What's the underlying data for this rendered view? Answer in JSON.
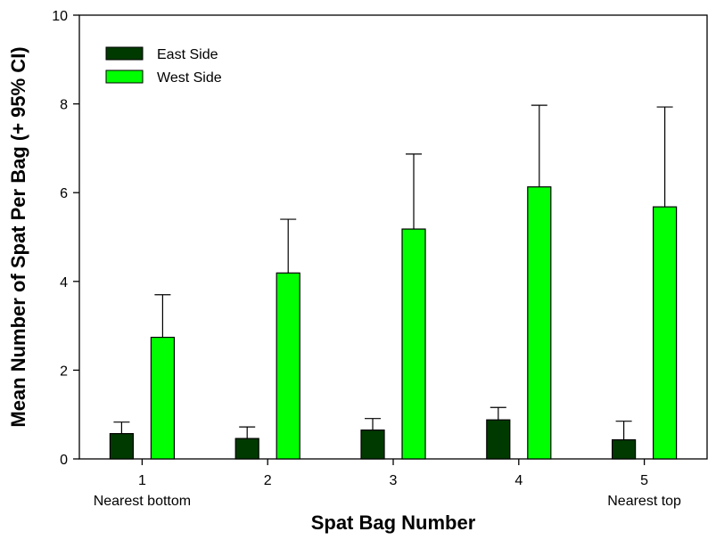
{
  "chart_data": {
    "type": "bar",
    "title": "",
    "xlabel": "Spat Bag Number",
    "ylabel": "Mean Number of Spat Per Bag (+ 95% CI)",
    "categories": [
      "1",
      "2",
      "3",
      "4",
      "5"
    ],
    "category_sublabels": [
      "Nearest bottom",
      "",
      "",
      "",
      "Nearest top"
    ],
    "ylim": [
      0,
      10
    ],
    "yticks": [
      0,
      2,
      4,
      6,
      8,
      10
    ],
    "grid": false,
    "legend_position": "top-left",
    "series": [
      {
        "name": "East Side",
        "color": "#003a00",
        "values": [
          0.57,
          0.46,
          0.65,
          0.88,
          0.43
        ],
        "ci_upper": [
          0.83,
          0.72,
          0.91,
          1.16,
          0.85
        ]
      },
      {
        "name": "West Side",
        "color": "#00ff00",
        "values": [
          2.74,
          4.19,
          5.18,
          6.13,
          5.68
        ],
        "ci_upper": [
          3.7,
          5.4,
          6.87,
          7.97,
          7.93
        ]
      }
    ]
  }
}
